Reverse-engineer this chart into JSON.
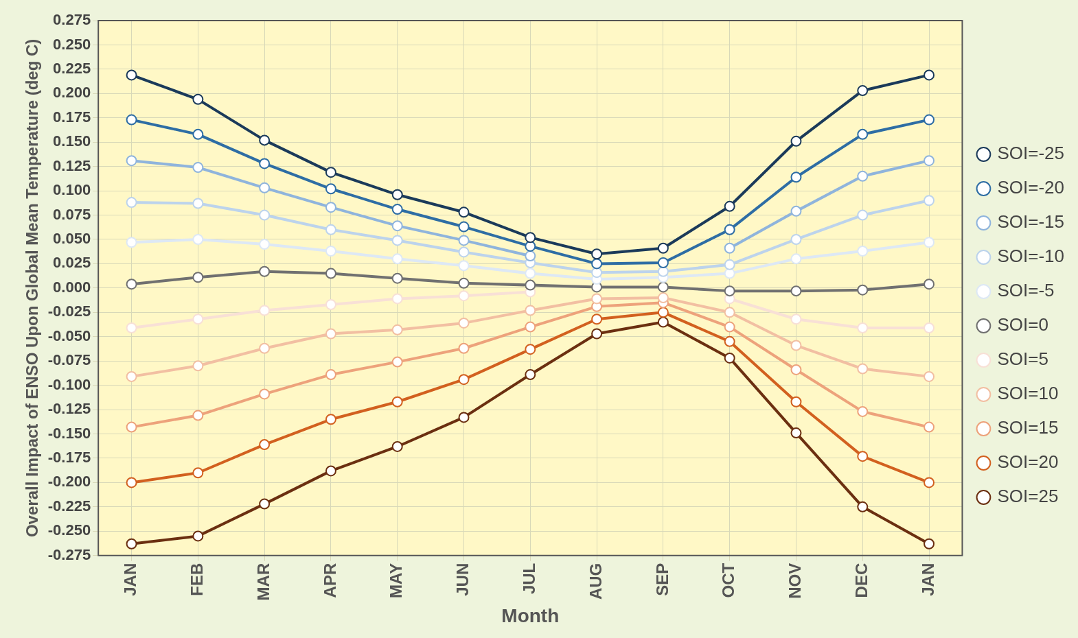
{
  "chart_data": {
    "type": "line",
    "xlabel": "Month",
    "ylabel": "Overall Impact of ENSO Upon Global Mean Temperature (deg C)",
    "categories": [
      "JAN",
      "FEB",
      "MAR",
      "APR",
      "MAY",
      "JUN",
      "JUL",
      "AUG",
      "SEP",
      "OCT",
      "NOV",
      "DEC",
      "JAN"
    ],
    "ylim": [
      -0.275,
      0.275
    ],
    "yticks": [
      {
        "value": -0.275,
        "label": "-0.275"
      },
      {
        "value": -0.25,
        "label": "-0.250"
      },
      {
        "value": -0.225,
        "label": "-0.225"
      },
      {
        "value": -0.2,
        "label": "-0.200"
      },
      {
        "value": -0.175,
        "label": "-0.175"
      },
      {
        "value": -0.15,
        "label": "-0.150"
      },
      {
        "value": -0.125,
        "label": "-0.125"
      },
      {
        "value": -0.1,
        "label": "-0.100"
      },
      {
        "value": -0.075,
        "label": "-0.075"
      },
      {
        "value": -0.05,
        "label": "-0.050"
      },
      {
        "value": -0.025,
        "label": "-0.025"
      },
      {
        "value": 0,
        "label": "0.000"
      },
      {
        "value": 0.025,
        "label": "0.025"
      },
      {
        "value": 0.05,
        "label": "0.050"
      },
      {
        "value": 0.075,
        "label": "0.075"
      },
      {
        "value": 0.1,
        "label": "0.100"
      },
      {
        "value": 0.125,
        "label": "0.125"
      },
      {
        "value": 0.15,
        "label": "0.150"
      },
      {
        "value": 0.175,
        "label": "0.175"
      },
      {
        "value": 0.2,
        "label": "0.200"
      },
      {
        "value": 0.225,
        "label": "0.225"
      },
      {
        "value": 0.25,
        "label": "0.250"
      },
      {
        "value": 0.275,
        "label": "0.275"
      }
    ],
    "grid": true,
    "legend": "right",
    "marker": "circle",
    "line_style": "solid",
    "series": [
      {
        "name": "SOI=-25",
        "color": "#1b3a5a",
        "values": [
          0.219,
          0.194,
          0.152,
          0.119,
          0.096,
          0.078,
          0.052,
          0.035,
          0.041,
          0.084,
          0.151,
          0.203,
          0.219
        ]
      },
      {
        "name": "SOI=-20",
        "color": "#2e6da4",
        "values": [
          0.173,
          0.158,
          0.128,
          0.102,
          0.081,
          0.063,
          0.043,
          0.025,
          0.026,
          0.06,
          0.114,
          0.158,
          0.173
        ]
      },
      {
        "name": "SOI=-15",
        "color": "#8fb4dc",
        "values": [
          0.131,
          0.124,
          0.103,
          0.083,
          0.064,
          0.049,
          0.033,
          null,
          null,
          0.041,
          0.079,
          0.115,
          0.131
        ]
      },
      {
        "name": "SOI=-10",
        "color": "#bcd3ec",
        "values": [
          0.088,
          0.087,
          0.075,
          0.06,
          0.049,
          0.037,
          0.026,
          0.016,
          0.017,
          0.024,
          0.05,
          0.075,
          0.09
        ]
      },
      {
        "name": "SOI=-5",
        "color": "#dde8f5",
        "values": [
          0.047,
          0.05,
          0.045,
          0.038,
          0.03,
          0.023,
          0.015,
          0.009,
          0.011,
          0.015,
          0.03,
          0.038,
          0.047
        ]
      },
      {
        "name": "SOI=0",
        "color": "#707070",
        "values": [
          0.004,
          0.011,
          0.017,
          0.015,
          0.01,
          0.005,
          0.003,
          0.001,
          0.001,
          -0.003,
          -0.003,
          -0.002,
          0.004
        ]
      },
      {
        "name": "SOI=5",
        "color": "#f8e0d6",
        "values": [
          -0.041,
          -0.032,
          -0.023,
          -0.017,
          -0.011,
          -0.008,
          -0.004,
          null,
          null,
          -0.011,
          -0.032,
          -0.041,
          -0.041
        ]
      },
      {
        "name": "SOI=10",
        "color": "#f2bfa2",
        "values": [
          -0.091,
          -0.08,
          -0.062,
          -0.047,
          -0.043,
          -0.036,
          -0.023,
          -0.011,
          -0.01,
          -0.025,
          -0.059,
          -0.083,
          -0.091
        ]
      },
      {
        "name": "SOI=15",
        "color": "#eda27b",
        "values": [
          -0.143,
          -0.131,
          -0.109,
          -0.089,
          -0.076,
          -0.062,
          -0.04,
          -0.019,
          -0.015,
          -0.04,
          -0.084,
          -0.127,
          -0.143
        ]
      },
      {
        "name": "SOI=20",
        "color": "#d2601f",
        "values": [
          -0.2,
          -0.19,
          -0.161,
          -0.135,
          -0.117,
          -0.094,
          -0.063,
          -0.032,
          -0.025,
          -0.055,
          -0.117,
          -0.173,
          -0.2
        ]
      },
      {
        "name": "SOI=25",
        "color": "#6b2f10",
        "values": [
          -0.263,
          -0.255,
          -0.222,
          -0.188,
          -0.163,
          -0.133,
          -0.089,
          -0.047,
          -0.035,
          -0.072,
          -0.149,
          -0.225,
          -0.263
        ]
      }
    ]
  }
}
